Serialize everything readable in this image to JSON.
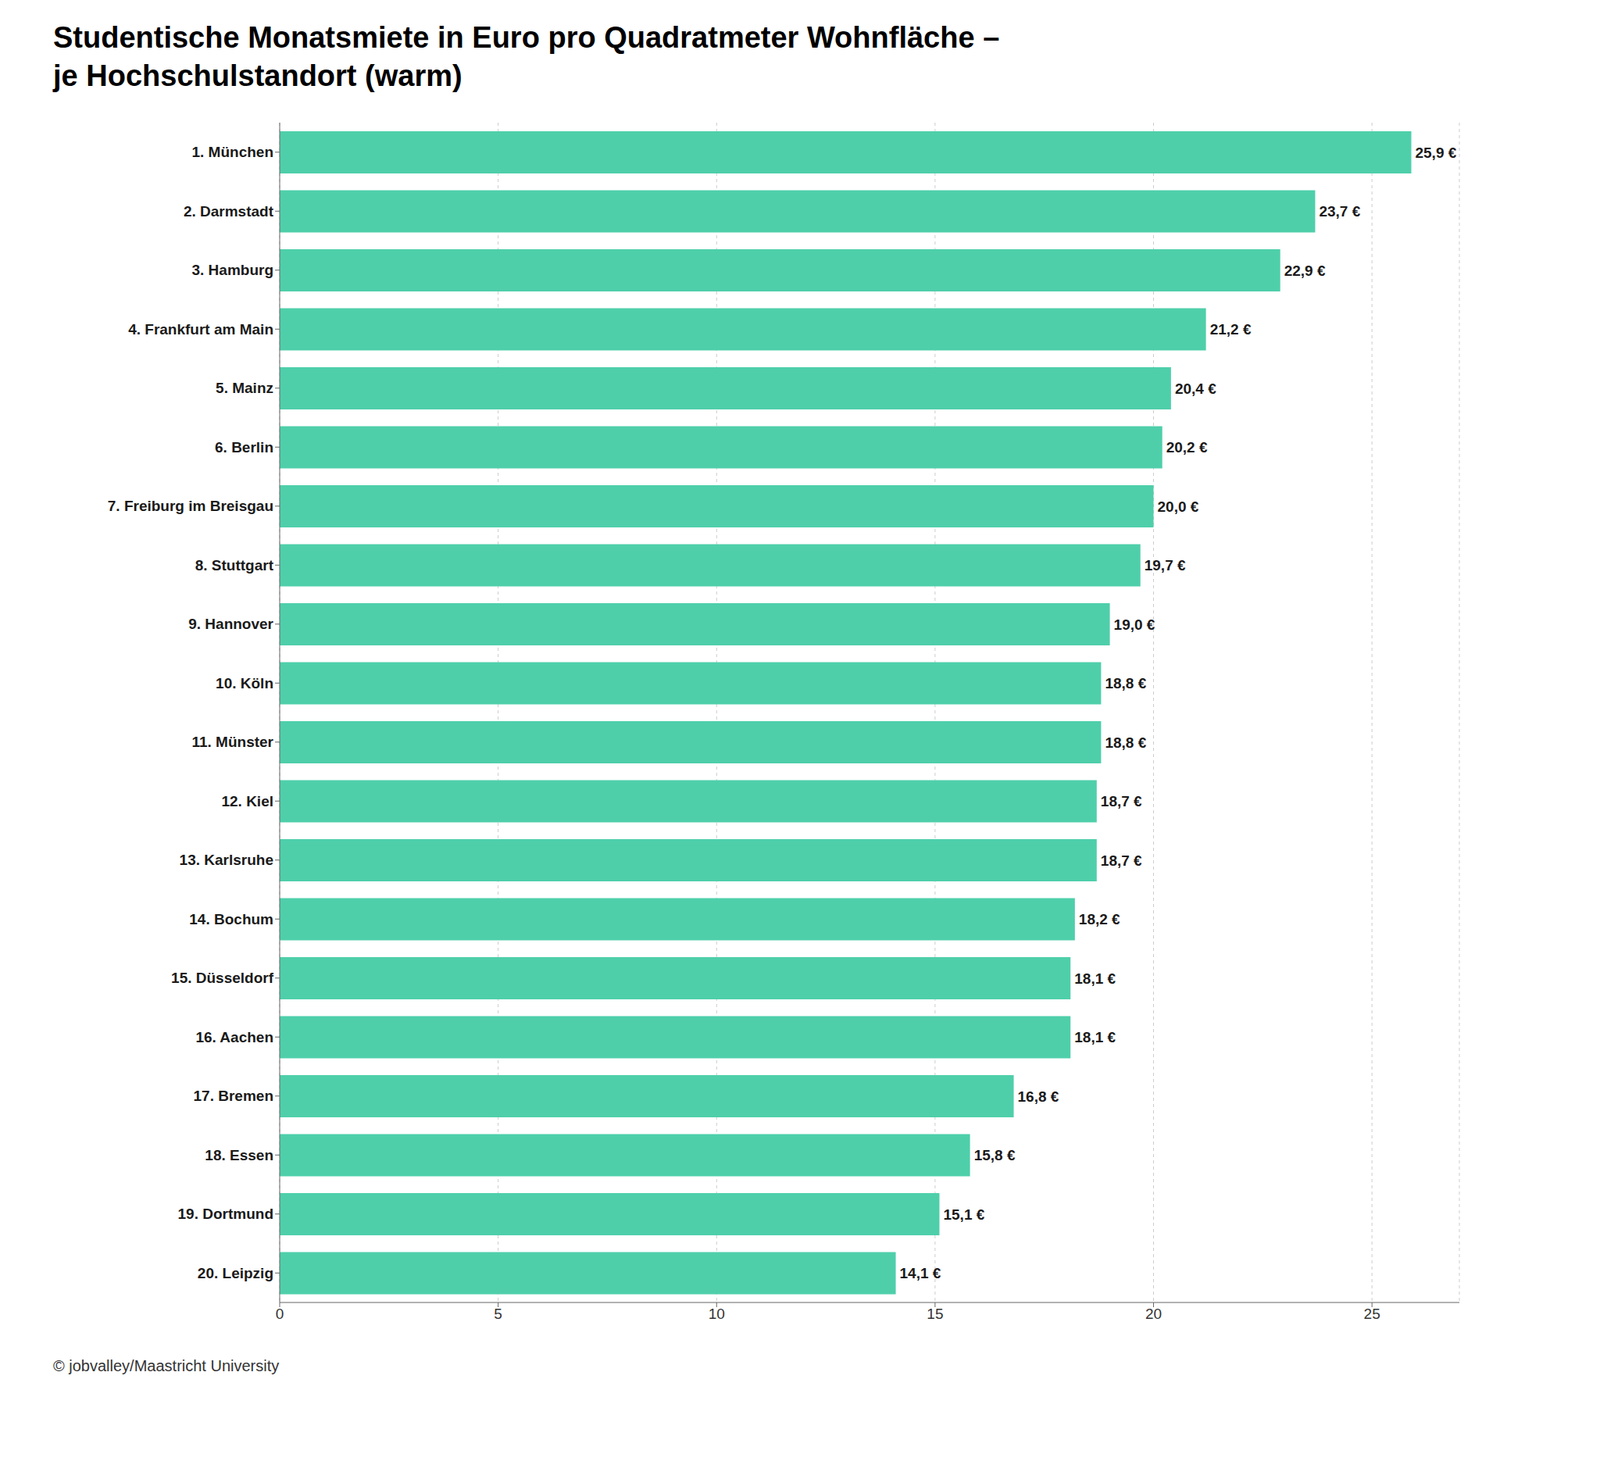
{
  "chart_data": {
    "type": "bar",
    "orientation": "horizontal",
    "title": "Studentische Monatsmiete in Euro pro Quadratmeter Wohnfläche –",
    "subtitle": "je Hochschulstandort (warm)",
    "annotations": [
      "© jobvalley/Maastricht University"
    ],
    "categories": [
      "1. München",
      "2. Darmstadt",
      "3. Hamburg",
      "4. Frankfurt am Main",
      "5. Mainz",
      "6. Berlin",
      "7. Freiburg im Breisgau",
      "8. Stuttgart",
      "9. Hannover",
      "10. Köln",
      "11. Münster",
      "12. Kiel",
      "13. Karlsruhe",
      "14. Bochum",
      "15. Düsseldorf",
      "16. Aachen",
      "17. Bremen",
      "18. Essen",
      "19. Dortmund",
      "20. Leipzig"
    ],
    "values": [
      25.9,
      23.7,
      22.9,
      21.2,
      20.4,
      20.2,
      20.0,
      19.7,
      19.0,
      18.8,
      18.8,
      18.7,
      18.7,
      18.2,
      18.1,
      18.1,
      16.8,
      15.8,
      15.1,
      14.1
    ],
    "value_labels": [
      "25,9 €",
      "23,7 €",
      "22,9 €",
      "21,2 €",
      "20,4 €",
      "20,2 €",
      "20,0 €",
      "19,7 €",
      "19,0 €",
      "18,8 €",
      "18,8 €",
      "18,7 €",
      "18,7 €",
      "18,2 €",
      "18,1 €",
      "18,1 €",
      "16,8 €",
      "15,8 €",
      "15,1 €",
      "14,1 €"
    ],
    "data_labels": true,
    "color": "#4ecfaa",
    "xlim": [
      0,
      27
    ],
    "xticks": [
      0,
      5,
      10,
      15,
      20,
      25
    ],
    "grid": true
  }
}
